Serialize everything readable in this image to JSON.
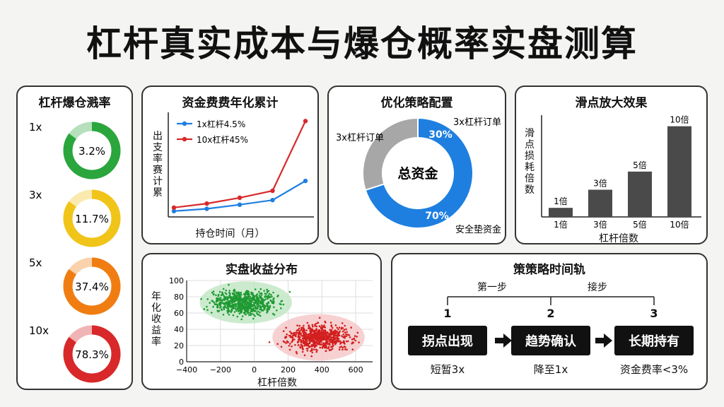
{
  "page_title": "杠杆真实成本与爆仓概率实盘测算",
  "colors": {
    "green": "#2aa63c",
    "yellow": "#f0c419",
    "orange": "#f07d12",
    "red": "#d8282a",
    "blue": "#1e7fe0",
    "grey": "#a7a7a7",
    "bar": "#4a4a4a"
  },
  "liquidation": {
    "title": "杠杆爆仓溅率",
    "items": [
      {
        "label": "1x",
        "value": "3.2%",
        "ratio": 0.032,
        "color": "#2aa63c"
      },
      {
        "label": "3x",
        "value": "11.7%",
        "ratio": 0.117,
        "color": "#f0c419"
      },
      {
        "label": "5x",
        "value": "37.4%",
        "ratio": 0.374,
        "color": "#f07d12"
      },
      {
        "label": "10x",
        "value": "78.3%",
        "ratio": 0.783,
        "color": "#d8282a"
      }
    ]
  },
  "chart_data": [
    {
      "type": "line",
      "title": "资金费费年化累计",
      "xlabel": "持仓时间（月）",
      "ylabel": "出支率赛计累",
      "x": [
        1,
        2,
        3,
        4,
        5
      ],
      "series": [
        {
          "name": "1x杠杆4.5%",
          "values": [
            1.0,
            1.4,
            2.1,
            2.9,
            6.2
          ],
          "color": "#1e7fe0"
        },
        {
          "name": "10x杠杆45%",
          "values": [
            1.6,
            2.3,
            3.3,
            4.5,
            16.5
          ],
          "color": "#d8282a"
        }
      ],
      "ylim": [
        0,
        18
      ],
      "legend": "top-left"
    },
    {
      "type": "pie",
      "title": "优化策略配置",
      "center_label": "总资金",
      "slices": [
        {
          "name": "3x杠杆订单",
          "value": 30,
          "label": "30%",
          "color": "#a7a7a7"
        },
        {
          "name": "安全垫资金",
          "value": 70,
          "label": "70%",
          "color": "#1e7fe0"
        }
      ]
    },
    {
      "type": "bar",
      "title": "滑点放大效果",
      "categories": [
        "1倍",
        "3倍",
        "5倍",
        "10倍"
      ],
      "values": [
        1,
        3,
        5,
        10
      ],
      "data_labels": [
        "1倍",
        "3倍",
        "5倍",
        "10倍"
      ],
      "xlabel": "杠杆倍数",
      "ylabel": "滑点损耗倍数",
      "ylim": [
        0,
        12
      ]
    },
    {
      "type": "scatter",
      "title": "实盘收益分布",
      "xlabel": "杠杆倍数",
      "ylabel": "年化收益率",
      "xlim": [
        -400,
        700
      ],
      "ylim": [
        0,
        100
      ],
      "xticks": [
        "−400",
        "−200",
        "0",
        "200",
        "400",
        "600"
      ],
      "yticks": [
        "0",
        "20",
        "40",
        "60",
        "80",
        "100"
      ],
      "grid": true,
      "clusters": [
        {
          "center_x": -50,
          "center_y": 73,
          "spread_x": 130,
          "spread_y": 10,
          "count": 700,
          "color": "#1f9a33",
          "ellipse_color": "#bfe6c2"
        },
        {
          "center_x": 380,
          "center_y": 30,
          "spread_x": 130,
          "spread_y": 11,
          "count": 700,
          "color": "#d21f1f",
          "ellipse_color": "#f5c6c6"
        }
      ]
    }
  ],
  "timeline": {
    "title": "策策略时间轨",
    "phase_left": "第一步",
    "phase_right": "接步",
    "steps": [
      {
        "num": "1",
        "label": "拐点出现",
        "sub": "短暂3x"
      },
      {
        "num": "2",
        "label": "趋势确认",
        "sub": "降至1x"
      },
      {
        "num": "3",
        "label": "长期持有",
        "sub": "资金费率<3%"
      }
    ]
  }
}
